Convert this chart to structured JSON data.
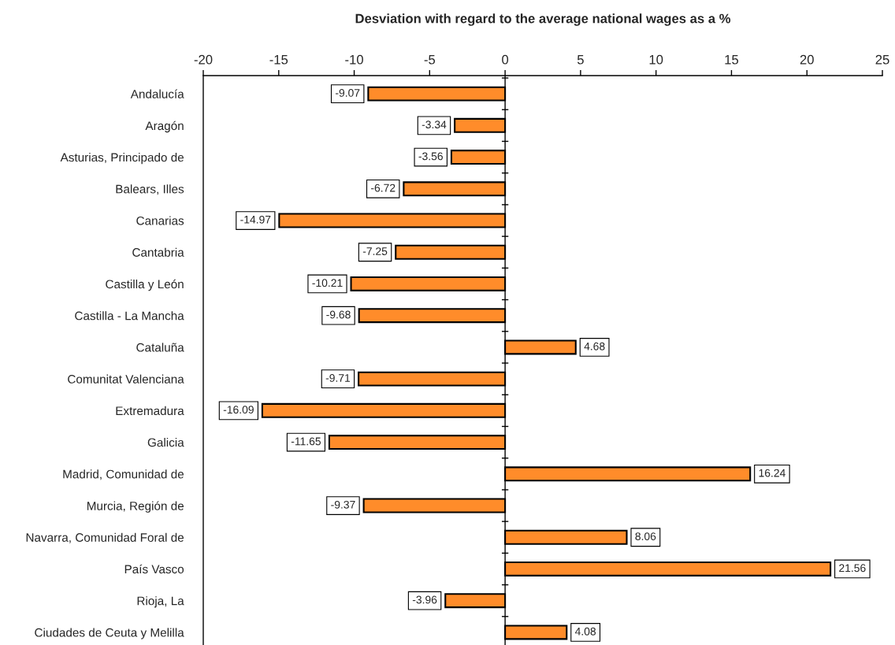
{
  "chart_data": {
    "type": "bar",
    "orientation": "horizontal",
    "title": "Desviation with regard to the average national wages as a %",
    "categories": [
      "Andalucía",
      "Aragón",
      "Asturias, Principado de",
      "Balears, Illes",
      "Canarias",
      "Cantabria",
      "Castilla y León",
      "Castilla - La Mancha",
      "Cataluña",
      "Comunitat Valenciana",
      "Extremadura",
      "Galicia",
      "Madrid, Comunidad de",
      "Murcia, Región de",
      "Navarra, Comunidad Foral de",
      "País Vasco",
      "Rioja, La",
      "Ciudades de Ceuta y Melilla"
    ],
    "values": [
      -9.07,
      -3.34,
      -3.56,
      -6.72,
      -14.97,
      -7.25,
      -10.21,
      -9.68,
      4.68,
      -9.71,
      -16.09,
      -11.65,
      16.24,
      -9.37,
      8.06,
      21.56,
      -3.96,
      4.08
    ],
    "color": "#ff8c2a",
    "xlim": [
      -20,
      25
    ],
    "xticks": [
      -20,
      -15,
      -10,
      -5,
      0,
      5,
      10,
      15,
      20,
      25
    ],
    "ref_lines": [
      {
        "axis": "x",
        "value": 0,
        "color": "#000000"
      }
    ],
    "data_labels": true
  }
}
